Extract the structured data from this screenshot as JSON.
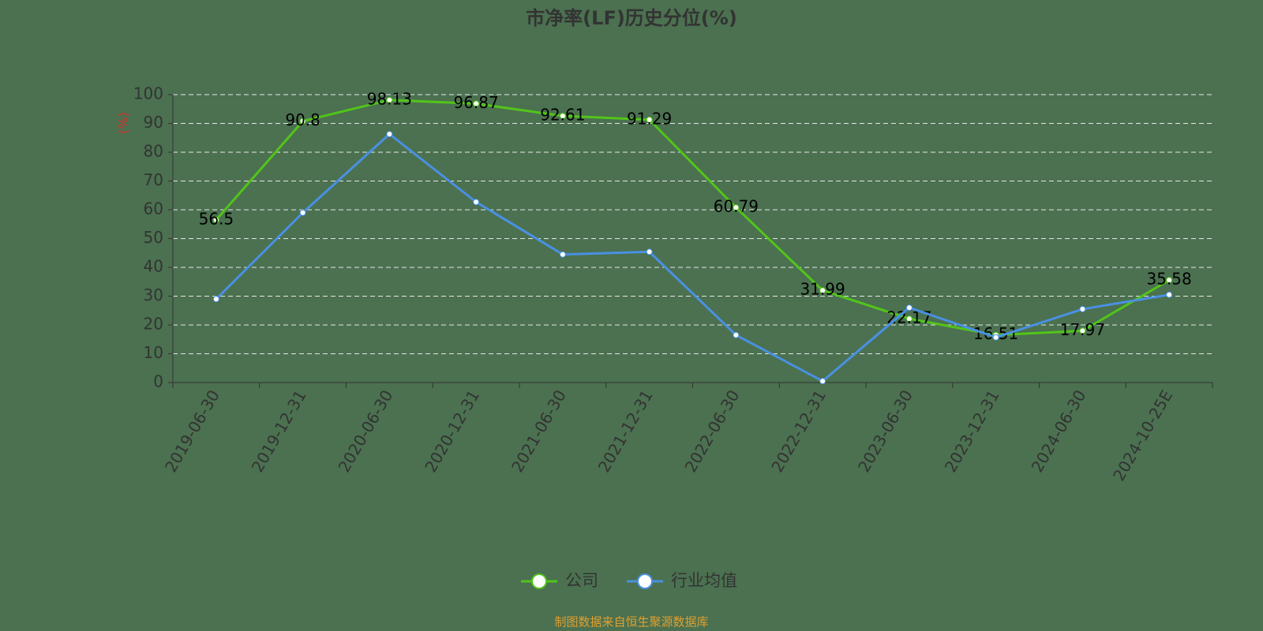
{
  "chart_data": {
    "type": "line",
    "title": "市净率(LF)历史分位(%)",
    "y_label": "(%)",
    "categories": [
      "2019-06-30",
      "2019-12-31",
      "2020-06-30",
      "2020-12-31",
      "2021-06-30",
      "2021-12-31",
      "2022-06-30",
      "2022-12-31",
      "2023-06-30",
      "2023-12-31",
      "2024-06-30",
      "2024-10-25E"
    ],
    "series": [
      {
        "name": "公司",
        "color": "#52c41a",
        "values": [
          56.5,
          90.8,
          98.13,
          96.87,
          92.61,
          91.29,
          60.79,
          31.99,
          22.17,
          16.51,
          17.97,
          35.58
        ],
        "data_labels": true
      },
      {
        "name": "行业均值",
        "color": "#4a90e2",
        "values": [
          29,
          59,
          86.3,
          62.7,
          44.5,
          45.4,
          16.5,
          0.5,
          26,
          15.7,
          25.5,
          30.5
        ],
        "data_labels": false
      }
    ],
    "ylim": [
      0,
      100
    ],
    "yticks": [
      0,
      10,
      20,
      30,
      40,
      50,
      60,
      70,
      80,
      90,
      100
    ],
    "grid": true,
    "legend": "bottom",
    "source": "制图数据来自恒生聚源数据库"
  }
}
